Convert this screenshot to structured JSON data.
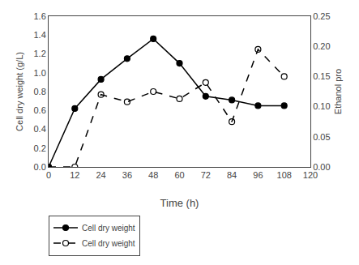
{
  "chart_data": {
    "type": "line",
    "x_label": "Time (h)",
    "y_label": "Cell dry weight (g/L)",
    "y2_label": "Ethanol pro",
    "x": [
      0,
      12,
      24,
      36,
      48,
      60,
      72,
      84,
      96,
      108
    ],
    "series": [
      {
        "name": "Cell dry weight",
        "color": "black",
        "marker": "filled",
        "line_style": "solid",
        "values": [
          0.0,
          0.62,
          0.93,
          1.15,
          1.36,
          1.1,
          0.75,
          0.71,
          0.65,
          0.65
        ]
      },
      {
        "name": "Cell dry weight",
        "color": "black",
        "marker": "open",
        "line_style": "dashed",
        "axis": "y2",
        "values": [
          0.0,
          0.0,
          0.12,
          0.108,
          0.125,
          0.113,
          0.14,
          0.075,
          0.195,
          0.15
        ]
      }
    ],
    "xlim": [
      0,
      120
    ],
    "xticks": [
      0,
      12,
      24,
      36,
      48,
      60,
      72,
      84,
      96,
      108,
      120
    ],
    "ylim": [
      0,
      1.6
    ],
    "yticks": [
      {
        "value": 0,
        "label": "0.0"
      },
      0.2,
      0.4,
      0.6,
      0.8,
      {
        "value": 1,
        "label": "1.0"
      },
      1.2,
      1.4,
      1.6
    ],
    "y2lim": [
      0,
      0.25
    ],
    "y2ticks": [
      {
        "value": 0,
        "label": "0.00"
      },
      0.05,
      {
        "value": 0.1,
        "label": "0.10"
      },
      0.15,
      {
        "value": 0.2,
        "label": "0.20"
      },
      0.25
    ],
    "grid": false,
    "legend": "lower left"
  }
}
